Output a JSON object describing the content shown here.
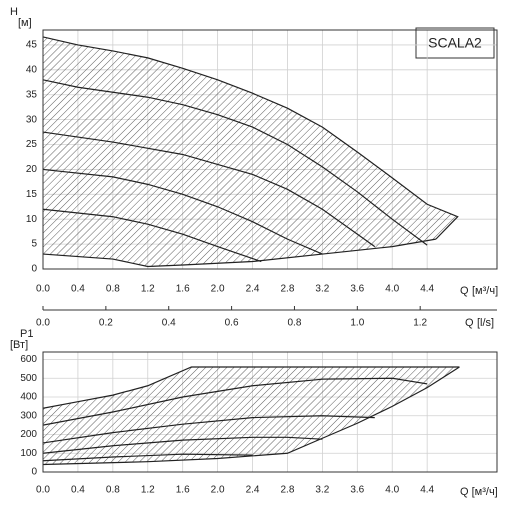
{
  "chart_data": [
    {
      "type": "line",
      "ylabel": "H",
      "yunit": "[м]",
      "xlabel": "Q",
      "xunit": "[м³/ч]",
      "badge": "SCALA2",
      "xlim": [
        0,
        5.2
      ],
      "ylim": [
        0,
        48
      ],
      "xticks": [
        {
          "value": 0,
          "label": "0.0"
        },
        0.4,
        0.8,
        1.2,
        1.6,
        {
          "value": 2,
          "label": "2.0"
        },
        2.4,
        2.8,
        3.2,
        3.6,
        {
          "value": 4,
          "label": "4.0"
        },
        4.4
      ],
      "yticks": [
        0,
        5,
        10,
        15,
        20,
        25,
        30,
        35,
        40,
        45
      ],
      "x2label": "Q",
      "x2unit": "[l/s]",
      "x2lim": [
        0,
        1.4444
      ],
      "x2ticks": [
        {
          "value": 0,
          "label": "0.0"
        },
        0.2,
        0.4,
        0.6,
        0.8,
        {
          "value": 1,
          "label": "1.0"
        },
        1.2
      ],
      "grid": true,
      "color": "#222222",
      "hatch": true,
      "fill_between": [
        0,
        5
      ],
      "series": [
        {
          "x": [
            0,
            0.4,
            0.8,
            1.2,
            1.6,
            2.0,
            2.4,
            2.8,
            3.2,
            3.6,
            4.0,
            4.4,
            4.75,
            4.5
          ],
          "values": [
            46.6,
            45,
            43.8,
            42.4,
            40.3,
            38,
            35.3,
            32.3,
            28.5,
            23.5,
            18.3,
            13,
            10.5,
            6
          ]
        },
        {
          "x": [
            0,
            0.4,
            0.8,
            1.2,
            1.6,
            2.0,
            2.4,
            2.8,
            3.2,
            3.6,
            4.0,
            4.4
          ],
          "values": [
            38,
            36.5,
            35.5,
            34.5,
            33,
            31,
            28.5,
            25,
            20.5,
            15.5,
            10,
            4.8
          ]
        },
        {
          "x": [
            0,
            0.8,
            1.6,
            2.4,
            2.8,
            3.2,
            3.6,
            3.8
          ],
          "values": [
            27.5,
            25.5,
            23,
            19,
            16,
            12,
            7,
            4.5
          ]
        },
        {
          "x": [
            0,
            0.8,
            1.2,
            1.6,
            2.0,
            2.4,
            2.8,
            3.2
          ],
          "values": [
            20,
            18.5,
            17,
            15,
            12.5,
            9.5,
            6,
            3
          ]
        },
        {
          "x": [
            0,
            0.8,
            1.2,
            1.6,
            2.0,
            2.5
          ],
          "values": [
            12,
            10.5,
            9,
            7,
            4.5,
            1.5
          ]
        },
        {
          "x": [
            0,
            0.8,
            1.2,
            1.6,
            2.4,
            3.2,
            4.0,
            4.5
          ],
          "values": [
            3,
            2,
            0.5,
            0.8,
            1.5,
            3,
            4.5,
            6
          ]
        }
      ]
    },
    {
      "type": "line",
      "ylabel": "P1",
      "yunit": "[Вт]",
      "xlabel": "Q [м³/ч]",
      "xlim": [
        0,
        5.2
      ],
      "ylim": [
        0,
        640
      ],
      "xticks": [
        {
          "value": 0,
          "label": "0.0"
        },
        0.4,
        0.8,
        1.2,
        1.6,
        {
          "value": 2,
          "label": "2.0"
        },
        2.4,
        2.8,
        3.2,
        3.6,
        {
          "value": 4,
          "label": "4.0"
        },
        4.4
      ],
      "yticks": [
        0,
        100,
        200,
        300,
        400,
        500,
        600
      ],
      "grid": true,
      "color": "#222222",
      "hatch": true,
      "fill_between": [
        0,
        5
      ],
      "series": [
        {
          "x": [
            0,
            0.4,
            0.8,
            1.2,
            1.7,
            4.77
          ],
          "values": [
            340,
            375,
            410,
            460,
            560,
            560
          ]
        },
        {
          "x": [
            0,
            0.8,
            1.6,
            2.4,
            3.2,
            4.0,
            4.4
          ],
          "values": [
            250,
            320,
            400,
            460,
            495,
            500,
            470
          ]
        },
        {
          "x": [
            0,
            0.8,
            1.6,
            2.4,
            3.2,
            3.8
          ],
          "values": [
            155,
            210,
            255,
            290,
            300,
            290
          ]
        },
        {
          "x": [
            0,
            0.8,
            1.6,
            2.4,
            2.8,
            3.2
          ],
          "values": [
            100,
            140,
            170,
            185,
            185,
            175
          ]
        },
        {
          "x": [
            0,
            0.8,
            1.6,
            2.4
          ],
          "values": [
            60,
            80,
            95,
            90
          ]
        },
        {
          "x": [
            0,
            1.2,
            2.0,
            2.8,
            3.2,
            3.6,
            4.0,
            4.4,
            4.77
          ],
          "values": [
            40,
            55,
            72,
            100,
            180,
            260,
            350,
            450,
            560
          ]
        }
      ]
    }
  ]
}
